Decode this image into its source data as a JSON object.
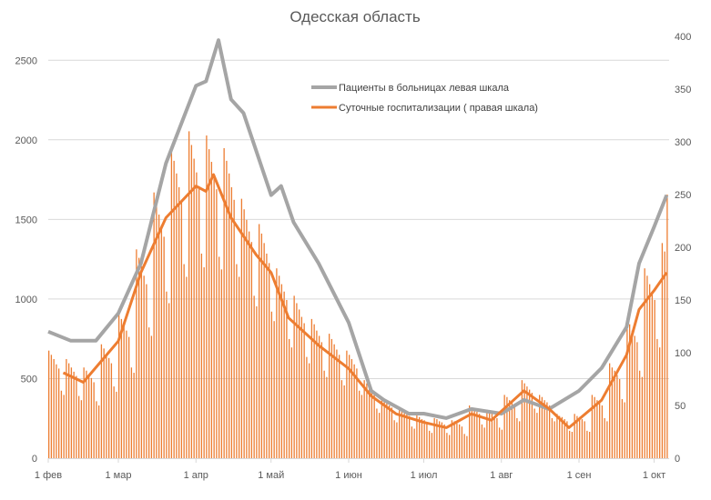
{
  "chart_data": {
    "type": "bar+line",
    "title": "Одесская область",
    "colors": {
      "patients": "#A5A5A5",
      "hospitalizations": "#ED7D31",
      "grid": "#D9D9D9"
    },
    "x_start_date": "2021-02-01",
    "x_ticks": [
      {
        "date": "2021-02-01",
        "label": "1 фев"
      },
      {
        "date": "2021-03-01",
        "label": "1 мар"
      },
      {
        "date": "2021-04-01",
        "label": "1 апр"
      },
      {
        "date": "2021-05-01",
        "label": "1 май"
      },
      {
        "date": "2021-06-01",
        "label": "1 июн"
      },
      {
        "date": "2021-07-01",
        "label": "1 июл"
      },
      {
        "date": "2021-08-01",
        "label": "1 авг"
      },
      {
        "date": "2021-09-01",
        "label": "1 сен"
      },
      {
        "date": "2021-10-01",
        "label": "1 окт"
      }
    ],
    "y_left": {
      "ylim": [
        0,
        2650
      ],
      "ticks": [
        "0",
        "500",
        "1000",
        "1500",
        "2000",
        "2500"
      ]
    },
    "y_right": {
      "ylim": [
        0,
        400
      ],
      "ticks": [
        "0",
        "50",
        "100",
        "150",
        "200",
        "250",
        "300",
        "350",
        "400"
      ]
    },
    "grid": true,
    "legend_position": "top-right",
    "legend": [
      {
        "label": "Пациенты в больницах левая шкала",
        "series": "patients"
      },
      {
        "label": "Суточные госпитализации ( правая шкала)",
        "series": "hospitalizations_avg"
      }
    ],
    "daily_bars_right_axis": [
      102,
      98,
      94,
      89,
      85,
      64,
      60,
      94,
      90,
      86,
      82,
      78,
      59,
      55,
      86,
      83,
      79,
      76,
      72,
      54,
      50,
      108,
      104,
      99,
      95,
      90,
      68,
      63,
      138,
      132,
      127,
      121,
      115,
      86,
      81,
      198,
      190,
      182,
      173,
      165,
      124,
      116,
      252,
      242,
      231,
      221,
      210,
      158,
      147,
      294,
      282,
      270,
      257,
      245,
      184,
      172,
      310,
      297,
      284,
      271,
      258,
      194,
      181,
      306,
      293,
      281,
      268,
      255,
      191,
      179,
      294,
      282,
      270,
      257,
      245,
      184,
      172,
      246,
      236,
      226,
      215,
      205,
      154,
      144,
      222,
      213,
      204,
      194,
      185,
      139,
      130,
      180,
      173,
      165,
      158,
      150,
      113,
      105,
      154,
      147,
      141,
      134,
      128,
      96,
      90,
      132,
      127,
      121,
      116,
      110,
      83,
      77,
      118,
      113,
      108,
      103,
      98,
      74,
      69,
      102,
      98,
      94,
      89,
      85,
      64,
      60,
      74,
      71,
      68,
      65,
      62,
      47,
      43,
      58,
      55,
      53,
      50,
      48,
      36,
      34,
      48,
      46,
      44,
      42,
      40,
      30,
      28,
      41,
      39,
      37,
      36,
      34,
      26,
      24,
      38,
      37,
      35,
      34,
      32,
      24,
      22,
      36,
      35,
      33,
      32,
      30,
      23,
      21,
      50,
      48,
      46,
      44,
      42,
      32,
      29,
      46,
      44,
      42,
      40,
      38,
      29,
      27,
      60,
      58,
      55,
      53,
      50,
      38,
      35,
      74,
      71,
      68,
      65,
      62,
      47,
      43,
      60,
      58,
      55,
      53,
      50,
      38,
      35,
      42,
      40,
      39,
      37,
      35,
      26,
      25,
      42,
      40,
      39,
      37,
      35,
      26,
      25,
      60,
      58,
      55,
      53,
      50,
      38,
      35,
      90,
      86,
      83,
      79,
      75,
      56,
      53,
      132,
      127,
      121,
      116,
      110,
      83,
      77,
      180,
      173,
      165,
      158,
      150,
      113,
      105,
      204,
      196,
      250
    ],
    "patients_left_axis": [
      [
        "2021-02-01",
        795
      ],
      [
        "2021-02-10",
        738
      ],
      [
        "2021-02-20",
        738
      ],
      [
        "2021-03-01",
        910
      ],
      [
        "2021-03-10",
        1224
      ],
      [
        "2021-03-20",
        1853
      ],
      [
        "2021-04-01",
        2340
      ],
      [
        "2021-04-05",
        2368
      ],
      [
        "2021-04-10",
        2626
      ],
      [
        "2021-04-15",
        2254
      ],
      [
        "2021-04-20",
        2168
      ],
      [
        "2021-05-01",
        1653
      ],
      [
        "2021-05-05",
        1710
      ],
      [
        "2021-05-10",
        1482
      ],
      [
        "2021-05-20",
        1224
      ],
      [
        "2021-06-01",
        852
      ],
      [
        "2021-06-10",
        423
      ],
      [
        "2021-06-15",
        366
      ],
      [
        "2021-06-25",
        280
      ],
      [
        "2021-07-01",
        280
      ],
      [
        "2021-07-10",
        252
      ],
      [
        "2021-07-20",
        309
      ],
      [
        "2021-08-01",
        280
      ],
      [
        "2021-08-10",
        366
      ],
      [
        "2021-08-20",
        309
      ],
      [
        "2021-09-01",
        423
      ],
      [
        "2021-09-10",
        566
      ],
      [
        "2021-09-20",
        824
      ],
      [
        "2021-09-25",
        1224
      ],
      [
        "2021-10-01",
        1453
      ],
      [
        "2021-10-06",
        1653
      ]
    ],
    "hospitalizations_avg_right_axis": [
      [
        "2021-02-07",
        81
      ],
      [
        "2021-02-15",
        72
      ],
      [
        "2021-03-01",
        111
      ],
      [
        "2021-03-10",
        176
      ],
      [
        "2021-03-20",
        228
      ],
      [
        "2021-04-01",
        258
      ],
      [
        "2021-04-05",
        253
      ],
      [
        "2021-04-08",
        269
      ],
      [
        "2021-04-15",
        228
      ],
      [
        "2021-04-25",
        193
      ],
      [
        "2021-05-01",
        176
      ],
      [
        "2021-05-08",
        133
      ],
      [
        "2021-05-20",
        107
      ],
      [
        "2021-06-01",
        85
      ],
      [
        "2021-06-10",
        59
      ],
      [
        "2021-06-20",
        42
      ],
      [
        "2021-07-01",
        34
      ],
      [
        "2021-07-10",
        29
      ],
      [
        "2021-07-20",
        42
      ],
      [
        "2021-07-28",
        36
      ],
      [
        "2021-08-10",
        64
      ],
      [
        "2021-08-20",
        47
      ],
      [
        "2021-08-28",
        29
      ],
      [
        "2021-09-10",
        55
      ],
      [
        "2021-09-20",
        98
      ],
      [
        "2021-09-25",
        141
      ],
      [
        "2021-10-01",
        159
      ],
      [
        "2021-10-06",
        176
      ]
    ]
  }
}
